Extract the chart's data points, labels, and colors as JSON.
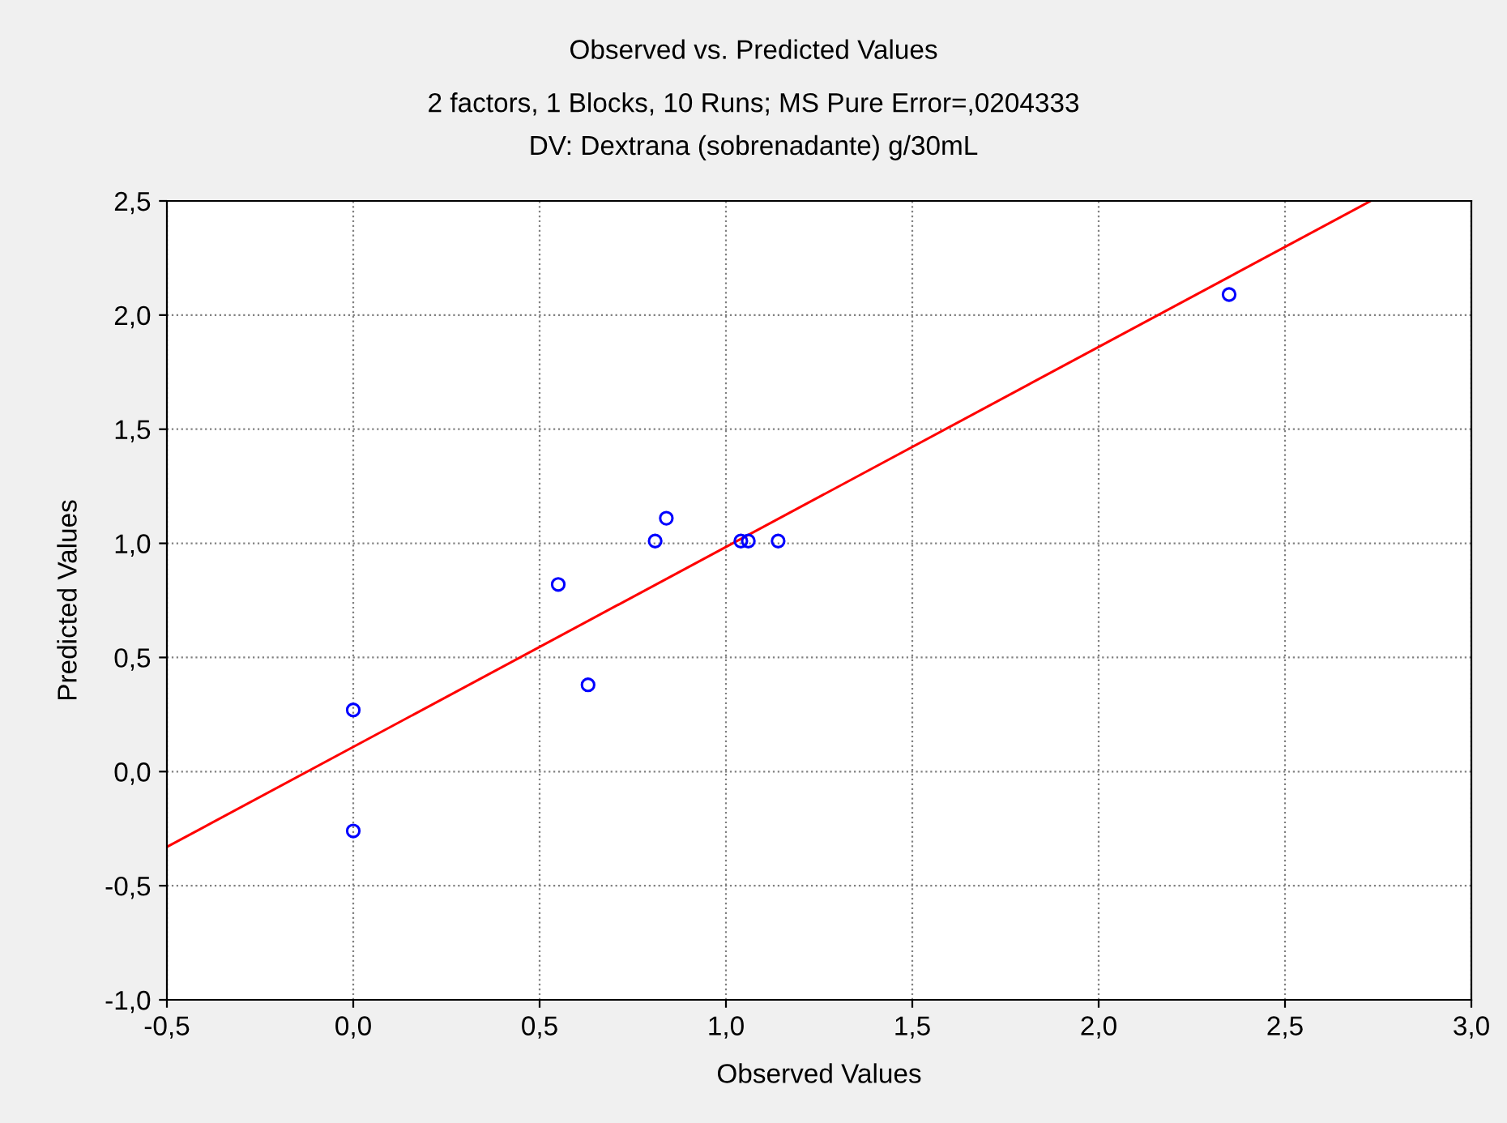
{
  "chart_data": {
    "type": "scatter",
    "title": "Observed vs. Predicted Values",
    "subtitle": "2 factors, 1 Blocks, 10 Runs; MS Pure Error=,0204333\nDV: Dextrana (sobrenadante) g/30mL",
    "xlabel": "Observed Values",
    "ylabel": "Predicted Values",
    "series": [
      {
        "color": "#0000ff",
        "marker": "circle",
        "x": [
          0.0,
          0.0,
          0.55,
          0.63,
          0.81,
          0.84,
          1.04,
          1.06,
          1.14,
          2.35
        ],
        "values": [
          0.27,
          -0.26,
          0.82,
          0.38,
          1.01,
          1.11,
          1.01,
          1.01,
          1.01,
          2.09
        ]
      },
      {
        "type": "line",
        "color": "#ff0000",
        "marker": "none",
        "line_style": "solid",
        "x": [
          -0.5,
          2.73
        ],
        "values": [
          -0.33,
          2.5
        ]
      }
    ],
    "xlim": [
      -0.5,
      3.0
    ],
    "ylim": [
      -1.0,
      2.5
    ],
    "xticks": [
      {
        "value": -0.5,
        "label": "-0,5"
      },
      {
        "value": 0.0,
        "label": "0,0"
      },
      {
        "value": 0.5,
        "label": "0,5"
      },
      {
        "value": 1.0,
        "label": "1,0"
      },
      {
        "value": 1.5,
        "label": "1,5"
      },
      {
        "value": 2.0,
        "label": "2,0"
      },
      {
        "value": 2.5,
        "label": "2,5"
      },
      {
        "value": 3.0,
        "label": "3,0"
      }
    ],
    "yticks": [
      {
        "value": -1.0,
        "label": "-1,0"
      },
      {
        "value": -0.5,
        "label": "-0,5"
      },
      {
        "value": 0.0,
        "label": "0,0"
      },
      {
        "value": 0.5,
        "label": "0,5"
      },
      {
        "value": 1.0,
        "label": "1,0"
      },
      {
        "value": 1.5,
        "label": "1,5"
      },
      {
        "value": 2.0,
        "label": "2,0"
      },
      {
        "value": 2.5,
        "label": "2,5"
      }
    ],
    "grid": true
  }
}
